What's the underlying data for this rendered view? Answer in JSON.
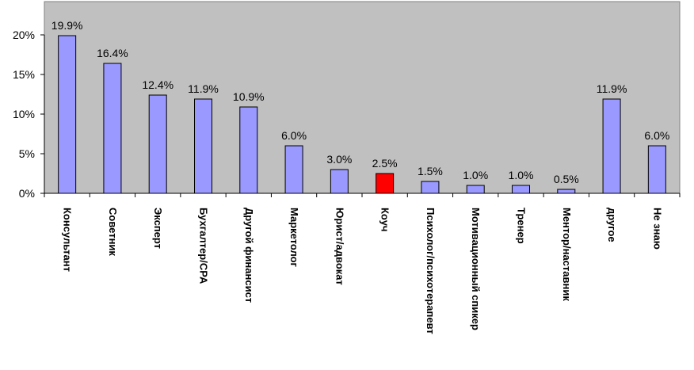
{
  "chart_data": {
    "type": "bar",
    "title": "",
    "xlabel": "",
    "ylabel": "",
    "ylim": [
      0,
      20
    ],
    "yticks": [
      0,
      5,
      10,
      15,
      20
    ],
    "ytick_labels": [
      "0%",
      "5%",
      "10%",
      "15%",
      "20%"
    ],
    "grid": false,
    "legend": "none",
    "categories": [
      "Консультант",
      "Советник",
      "Эксперт",
      "Бухгалтер/CPA",
      "Другой финансист",
      "Маркетолог",
      "Юрист/адвокат",
      "Коуч",
      "Психолог/психотерапевт",
      "Мотивационный спикер",
      "Тренер",
      "Ментор/наставник",
      "другое",
      "Не знаю"
    ],
    "values": [
      19.9,
      16.4,
      12.4,
      11.9,
      10.9,
      6.0,
      3.0,
      2.5,
      1.5,
      1.0,
      1.0,
      0.5,
      11.9,
      6.0
    ],
    "data_labels": [
      "19.9%",
      "16.4%",
      "12.4%",
      "11.9%",
      "10.9%",
      "6.0%",
      "3.0%",
      "2.5%",
      "1.5%",
      "1.0%",
      "1.0%",
      "0.5%",
      "11.9%",
      "6.0%"
    ],
    "highlight_index": 7,
    "colors": {
      "plot_background": "#c0c0c0",
      "bar": "#9999ff",
      "bar_highlight": "#ff0000",
      "bar_stroke": "#000000"
    }
  }
}
